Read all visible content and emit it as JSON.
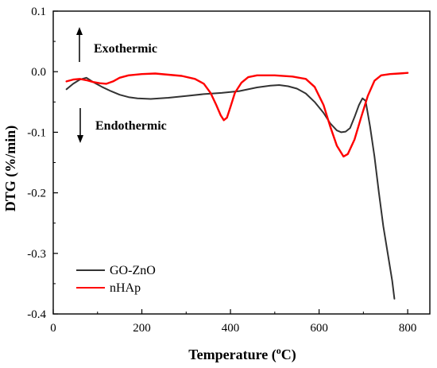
{
  "chart_data": {
    "type": "line",
    "xlabel": "Temperature (°C)",
    "xlabel_parts": {
      "main": "Temperature (",
      "sup": "o",
      "tail": "C)"
    },
    "ylabel": "DTG (%/min)",
    "xlim": [
      0,
      850
    ],
    "ylim": [
      -0.4,
      0.1
    ],
    "x_ticks": [
      0,
      200,
      400,
      600,
      800
    ],
    "x_tick_labels": [
      "0",
      "200",
      "400",
      "600",
      "800"
    ],
    "y_ticks": [
      0.1,
      0.0,
      -0.1,
      -0.2,
      -0.3,
      -0.4
    ],
    "y_tick_labels": [
      "0.1",
      "0.0",
      "-0.1",
      "-0.2",
      "-0.3",
      "-0.4"
    ],
    "grid": false,
    "legend_position": "bottom-left",
    "annotations": {
      "exothermic": "Exothermic",
      "endothermic": "Endothermic"
    },
    "series": [
      {
        "name": "GO-ZnO",
        "color": "#333333",
        "points": [
          [
            30,
            -0.029
          ],
          [
            45,
            -0.02
          ],
          [
            60,
            -0.013
          ],
          [
            75,
            -0.01
          ],
          [
            90,
            -0.017
          ],
          [
            110,
            -0.025
          ],
          [
            130,
            -0.032
          ],
          [
            150,
            -0.038
          ],
          [
            170,
            -0.042
          ],
          [
            190,
            -0.044
          ],
          [
            220,
            -0.045
          ],
          [
            260,
            -0.043
          ],
          [
            300,
            -0.04
          ],
          [
            340,
            -0.037
          ],
          [
            380,
            -0.035
          ],
          [
            420,
            -0.032
          ],
          [
            460,
            -0.026
          ],
          [
            490,
            -0.023
          ],
          [
            510,
            -0.022
          ],
          [
            530,
            -0.024
          ],
          [
            550,
            -0.028
          ],
          [
            570,
            -0.036
          ],
          [
            590,
            -0.05
          ],
          [
            610,
            -0.068
          ],
          [
            625,
            -0.085
          ],
          [
            640,
            -0.097
          ],
          [
            650,
            -0.1
          ],
          [
            660,
            -0.099
          ],
          [
            670,
            -0.093
          ],
          [
            680,
            -0.075
          ],
          [
            690,
            -0.055
          ],
          [
            698,
            -0.044
          ],
          [
            705,
            -0.048
          ],
          [
            715,
            -0.09
          ],
          [
            725,
            -0.14
          ],
          [
            735,
            -0.2
          ],
          [
            745,
            -0.255
          ],
          [
            755,
            -0.3
          ],
          [
            765,
            -0.345
          ],
          [
            770,
            -0.375
          ]
        ]
      },
      {
        "name": "nHAp",
        "color": "#ff0000",
        "points": [
          [
            30,
            -0.016
          ],
          [
            45,
            -0.013
          ],
          [
            60,
            -0.012
          ],
          [
            75,
            -0.014
          ],
          [
            90,
            -0.017
          ],
          [
            105,
            -0.019
          ],
          [
            120,
            -0.02
          ],
          [
            135,
            -0.016
          ],
          [
            150,
            -0.01
          ],
          [
            170,
            -0.006
          ],
          [
            200,
            -0.004
          ],
          [
            230,
            -0.003
          ],
          [
            260,
            -0.005
          ],
          [
            290,
            -0.007
          ],
          [
            320,
            -0.012
          ],
          [
            340,
            -0.02
          ],
          [
            355,
            -0.035
          ],
          [
            368,
            -0.055
          ],
          [
            378,
            -0.072
          ],
          [
            385,
            -0.08
          ],
          [
            392,
            -0.076
          ],
          [
            400,
            -0.058
          ],
          [
            410,
            -0.035
          ],
          [
            425,
            -0.018
          ],
          [
            440,
            -0.009
          ],
          [
            460,
            -0.006
          ],
          [
            500,
            -0.006
          ],
          [
            540,
            -0.008
          ],
          [
            570,
            -0.012
          ],
          [
            590,
            -0.025
          ],
          [
            610,
            -0.055
          ],
          [
            625,
            -0.09
          ],
          [
            640,
            -0.122
          ],
          [
            655,
            -0.14
          ],
          [
            665,
            -0.136
          ],
          [
            680,
            -0.112
          ],
          [
            695,
            -0.075
          ],
          [
            710,
            -0.04
          ],
          [
            725,
            -0.015
          ],
          [
            740,
            -0.006
          ],
          [
            760,
            -0.004
          ],
          [
            780,
            -0.003
          ],
          [
            800,
            -0.002
          ]
        ]
      }
    ]
  }
}
